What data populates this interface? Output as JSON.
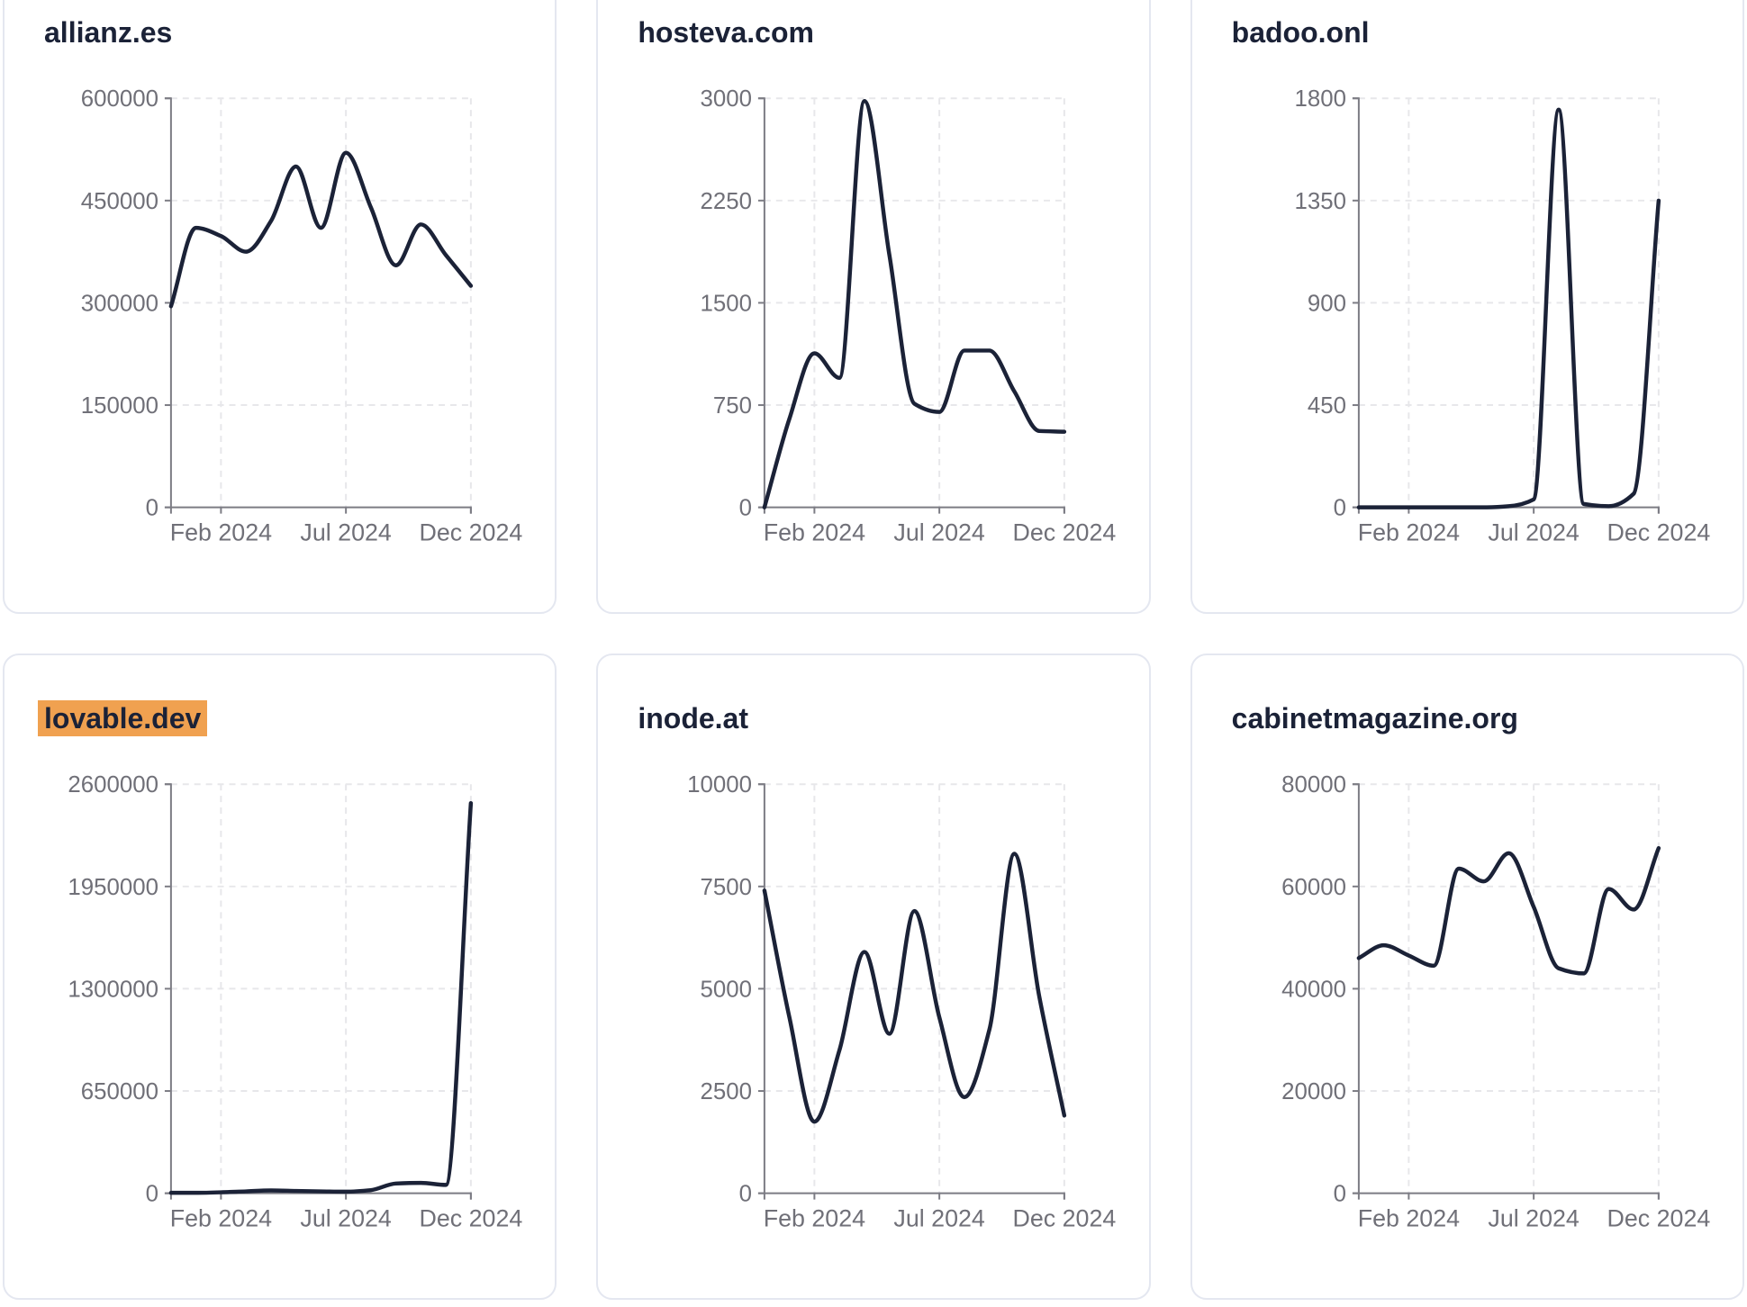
{
  "page": {
    "background": "#ffffff",
    "card_background": "#ffffff",
    "card_border_color": "#e4e7f0",
    "title_color": "#1b2237",
    "line_color": "#1b2237",
    "axis_color": "#7c7c84",
    "tick_label_color": "#707078",
    "gridline_color": "#e7e7ea",
    "highlight_color": "#f0a150"
  },
  "chart_data": [
    {
      "type": "line",
      "title": "allianz.es",
      "highlighted": false,
      "x": [
        "Dec 2023",
        "Jan 2024",
        "Feb 2024",
        "Mar 2024",
        "Apr 2024",
        "May 2024",
        "Jun 2024",
        "Jul 2024",
        "Aug 2024",
        "Sep 2024",
        "Oct 2024",
        "Nov 2024",
        "Dec 2024"
      ],
      "values": [
        295000,
        410000,
        398000,
        375000,
        420000,
        500000,
        410000,
        520000,
        440000,
        355000,
        415000,
        370000,
        325000
      ],
      "x_tick_labels": [
        "Feb 2024",
        "Jul 2024",
        "Dec 2024"
      ],
      "x_tick_indices": [
        2,
        7,
        12
      ],
      "y_ticks": [
        0,
        150000,
        300000,
        450000,
        600000
      ],
      "ylim": [
        0,
        600000
      ],
      "grid": true,
      "legend": null
    },
    {
      "type": "line",
      "title": "hosteva.com",
      "highlighted": false,
      "x": [
        "Dec 2023",
        "Jan 2024",
        "Feb 2024",
        "Mar 2024",
        "Apr 2024",
        "May 2024",
        "Jun 2024",
        "Jul 2024",
        "Aug 2024",
        "Sep 2024",
        "Oct 2024",
        "Nov 2024",
        "Dec 2024"
      ],
      "values": [
        0,
        650,
        1130,
        950,
        2980,
        1850,
        760,
        700,
        1150,
        1150,
        850,
        560,
        555
      ],
      "x_tick_labels": [
        "Feb 2024",
        "Jul 2024",
        "Dec 2024"
      ],
      "x_tick_indices": [
        2,
        7,
        12
      ],
      "y_ticks": [
        0,
        750,
        1500,
        2250,
        3000
      ],
      "ylim": [
        0,
        3000
      ],
      "grid": true,
      "legend": null
    },
    {
      "type": "line",
      "title": "badoo.onl",
      "highlighted": false,
      "x": [
        "Dec 2023",
        "Jan 2024",
        "Feb 2024",
        "Mar 2024",
        "Apr 2024",
        "May 2024",
        "Jun 2024",
        "Jul 2024",
        "Aug 2024",
        "Sep 2024",
        "Oct 2024",
        "Nov 2024",
        "Dec 2024"
      ],
      "values": [
        0,
        0,
        0,
        0,
        0,
        0,
        5,
        35,
        1750,
        15,
        5,
        60,
        1350
      ],
      "x_tick_labels": [
        "Feb 2024",
        "Jul 2024",
        "Dec 2024"
      ],
      "x_tick_indices": [
        2,
        7,
        12
      ],
      "y_ticks": [
        0,
        450,
        900,
        1350,
        1800
      ],
      "ylim": [
        0,
        1800
      ],
      "grid": true,
      "legend": null
    },
    {
      "type": "line",
      "title": "lovable.dev",
      "highlighted": true,
      "x": [
        "Dec 2023",
        "Jan 2024",
        "Feb 2024",
        "Mar 2024",
        "Apr 2024",
        "May 2024",
        "Jun 2024",
        "Jul 2024",
        "Aug 2024",
        "Sep 2024",
        "Oct 2024",
        "Nov 2024",
        "Dec 2024"
      ],
      "values": [
        3000,
        3000,
        6000,
        12000,
        18000,
        15000,
        12000,
        10000,
        20000,
        62000,
        66000,
        53000,
        2480000
      ],
      "x_tick_labels": [
        "Feb 2024",
        "Jul 2024",
        "Dec 2024"
      ],
      "x_tick_indices": [
        2,
        7,
        12
      ],
      "y_ticks": [
        0,
        650000,
        1300000,
        1950000,
        2600000
      ],
      "ylim": [
        0,
        2600000
      ],
      "grid": true,
      "legend": null
    },
    {
      "type": "line",
      "title": "inode.at",
      "highlighted": false,
      "x": [
        "Dec 2023",
        "Jan 2024",
        "Feb 2024",
        "Mar 2024",
        "Apr 2024",
        "May 2024",
        "Jun 2024",
        "Jul 2024",
        "Aug 2024",
        "Sep 2024",
        "Oct 2024",
        "Nov 2024",
        "Dec 2024"
      ],
      "values": [
        7400,
        4300,
        1750,
        3500,
        5900,
        3900,
        6900,
        4300,
        2350,
        4000,
        8300,
        4800,
        1900
      ],
      "x_tick_labels": [
        "Feb 2024",
        "Jul 2024",
        "Dec 2024"
      ],
      "x_tick_indices": [
        2,
        7,
        12
      ],
      "y_ticks": [
        0,
        2500,
        5000,
        7500,
        10000
      ],
      "ylim": [
        0,
        10000
      ],
      "grid": true,
      "legend": null
    },
    {
      "type": "line",
      "title": "cabinetmagazine.org",
      "highlighted": false,
      "x": [
        "Dec 2023",
        "Jan 2024",
        "Feb 2024",
        "Mar 2024",
        "Apr 2024",
        "May 2024",
        "Jun 2024",
        "Jul 2024",
        "Aug 2024",
        "Sep 2024",
        "Oct 2024",
        "Nov 2024",
        "Dec 2024"
      ],
      "values": [
        46000,
        48500,
        46500,
        44500,
        63500,
        61000,
        66500,
        56000,
        44000,
        43000,
        59500,
        55500,
        67500
      ],
      "x_tick_labels": [
        "Feb 2024",
        "Jul 2024",
        "Dec 2024"
      ],
      "x_tick_indices": [
        2,
        7,
        12
      ],
      "y_ticks": [
        0,
        20000,
        40000,
        60000,
        80000
      ],
      "ylim": [
        0,
        80000
      ],
      "grid": true,
      "legend": null
    }
  ]
}
